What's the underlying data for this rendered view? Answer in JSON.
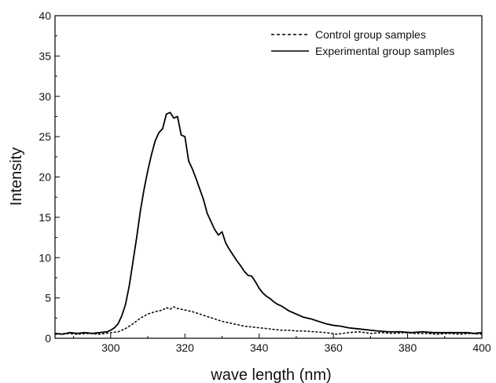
{
  "chart_data": {
    "type": "line",
    "title": "",
    "xlabel": "wave length (nm)",
    "ylabel": "Intensity",
    "xlim": [
      285,
      400
    ],
    "ylim": [
      0,
      40
    ],
    "x_ticks": [
      300,
      320,
      340,
      360,
      380,
      400
    ],
    "y_ticks": [
      0,
      5,
      10,
      15,
      20,
      25,
      30,
      35,
      40
    ],
    "x_tick_labels": [
      "300",
      "320",
      "340",
      "360",
      "380",
      "400"
    ],
    "y_tick_labels": [
      "0",
      "5",
      "10",
      "15",
      "20",
      "25",
      "30",
      "35",
      "40"
    ],
    "grid": false,
    "legend_position": "top-right",
    "series": [
      {
        "name": "Control group samples",
        "style": "dashed",
        "color": "#000000",
        "points": [
          [
            285,
            0.5
          ],
          [
            288,
            0.6
          ],
          [
            291,
            0.5
          ],
          [
            294,
            0.6
          ],
          [
            297,
            0.5
          ],
          [
            300,
            0.7
          ],
          [
            302,
            0.8
          ],
          [
            304,
            1.2
          ],
          [
            306,
            1.8
          ],
          [
            308,
            2.5
          ],
          [
            310,
            3.0
          ],
          [
            312,
            3.3
          ],
          [
            314,
            3.5
          ],
          [
            315,
            3.8
          ],
          [
            316,
            3.6
          ],
          [
            317,
            3.9
          ],
          [
            318,
            3.7
          ],
          [
            320,
            3.5
          ],
          [
            322,
            3.3
          ],
          [
            324,
            3.0
          ],
          [
            326,
            2.7
          ],
          [
            328,
            2.4
          ],
          [
            330,
            2.1
          ],
          [
            332,
            1.9
          ],
          [
            334,
            1.7
          ],
          [
            336,
            1.5
          ],
          [
            338,
            1.4
          ],
          [
            340,
            1.3
          ],
          [
            342,
            1.2
          ],
          [
            344,
            1.1
          ],
          [
            346,
            1.0
          ],
          [
            348,
            1.0
          ],
          [
            350,
            0.9
          ],
          [
            352,
            0.9
          ],
          [
            355,
            0.8
          ],
          [
            358,
            0.7
          ],
          [
            361,
            0.5
          ],
          [
            364,
            0.7
          ],
          [
            367,
            0.8
          ],
          [
            370,
            0.6
          ],
          [
            373,
            0.7
          ],
          [
            376,
            0.6
          ],
          [
            379,
            0.7
          ],
          [
            382,
            0.6
          ],
          [
            385,
            0.6
          ],
          [
            388,
            0.5
          ],
          [
            391,
            0.6
          ],
          [
            394,
            0.5
          ],
          [
            397,
            0.6
          ],
          [
            400,
            0.5
          ]
        ]
      },
      {
        "name": "Experimental group samples",
        "style": "solid",
        "color": "#000000",
        "points": [
          [
            285,
            0.6
          ],
          [
            287,
            0.5
          ],
          [
            289,
            0.7
          ],
          [
            291,
            0.6
          ],
          [
            293,
            0.7
          ],
          [
            295,
            0.6
          ],
          [
            297,
            0.7
          ],
          [
            299,
            0.8
          ],
          [
            300,
            1.0
          ],
          [
            301,
            1.3
          ],
          [
            302,
            1.8
          ],
          [
            303,
            2.8
          ],
          [
            304,
            4.2
          ],
          [
            305,
            6.5
          ],
          [
            306,
            9.5
          ],
          [
            307,
            12.5
          ],
          [
            308,
            15.8
          ],
          [
            309,
            18.5
          ],
          [
            310,
            20.8
          ],
          [
            311,
            22.8
          ],
          [
            312,
            24.5
          ],
          [
            313,
            25.5
          ],
          [
            314,
            26.0
          ],
          [
            315,
            27.8
          ],
          [
            316,
            28.0
          ],
          [
            317,
            27.3
          ],
          [
            318,
            27.5
          ],
          [
            319,
            25.2
          ],
          [
            320,
            25.0
          ],
          [
            321,
            22.0
          ],
          [
            322,
            21.0
          ],
          [
            323,
            19.8
          ],
          [
            324,
            18.5
          ],
          [
            325,
            17.2
          ],
          [
            326,
            15.5
          ],
          [
            327,
            14.5
          ],
          [
            328,
            13.5
          ],
          [
            329,
            12.8
          ],
          [
            330,
            13.2
          ],
          [
            331,
            11.8
          ],
          [
            332,
            11.0
          ],
          [
            333,
            10.3
          ],
          [
            334,
            9.6
          ],
          [
            335,
            9.0
          ],
          [
            336,
            8.3
          ],
          [
            337,
            7.8
          ],
          [
            338,
            7.7
          ],
          [
            339,
            7.0
          ],
          [
            340,
            6.2
          ],
          [
            341,
            5.6
          ],
          [
            342,
            5.2
          ],
          [
            343,
            4.9
          ],
          [
            344,
            4.5
          ],
          [
            345,
            4.2
          ],
          [
            346,
            4.0
          ],
          [
            347,
            3.7
          ],
          [
            348,
            3.4
          ],
          [
            349,
            3.2
          ],
          [
            350,
            3.0
          ],
          [
            352,
            2.6
          ],
          [
            354,
            2.4
          ],
          [
            356,
            2.1
          ],
          [
            358,
            1.8
          ],
          [
            360,
            1.6
          ],
          [
            362,
            1.5
          ],
          [
            364,
            1.3
          ],
          [
            366,
            1.2
          ],
          [
            368,
            1.1
          ],
          [
            370,
            1.0
          ],
          [
            372,
            0.9
          ],
          [
            375,
            0.8
          ],
          [
            378,
            0.8
          ],
          [
            381,
            0.7
          ],
          [
            384,
            0.8
          ],
          [
            387,
            0.7
          ],
          [
            390,
            0.7
          ],
          [
            393,
            0.7
          ],
          [
            396,
            0.7
          ],
          [
            398,
            0.6
          ],
          [
            400,
            0.7
          ]
        ]
      }
    ]
  }
}
